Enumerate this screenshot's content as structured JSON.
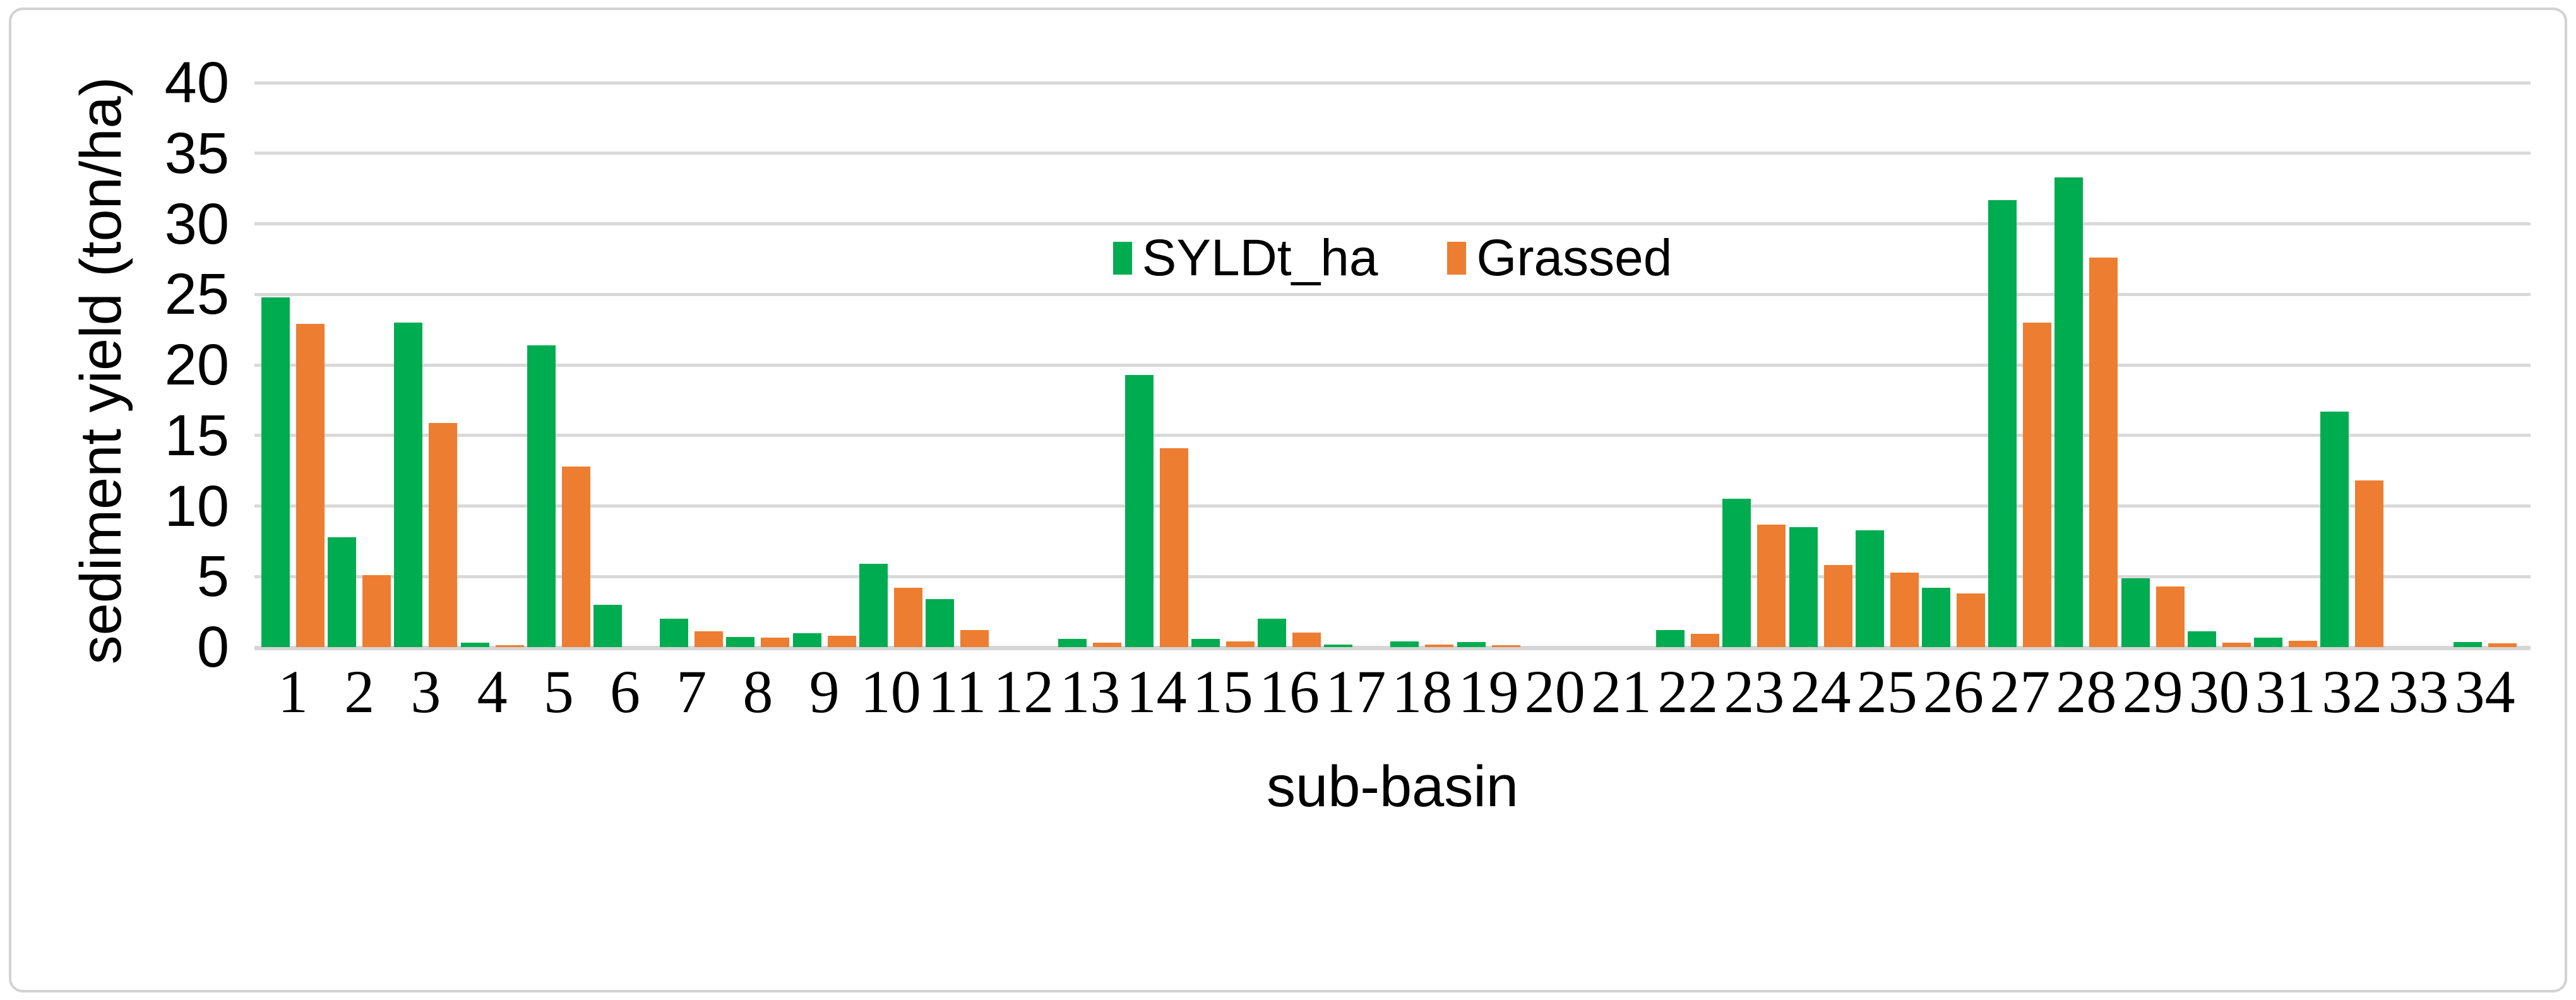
{
  "chart_data": {
    "type": "bar",
    "title": "",
    "xlabel": "sub-basin",
    "ylabel": "sediment yield (ton/ha)",
    "ylim": [
      0,
      40
    ],
    "ytick_step": 5,
    "grid": true,
    "legend_position": "top-center-inside-plot",
    "categories": [
      1,
      2,
      3,
      4,
      5,
      6,
      7,
      8,
      9,
      10,
      11,
      12,
      13,
      14,
      15,
      16,
      17,
      18,
      19,
      20,
      21,
      22,
      23,
      24,
      25,
      26,
      27,
      28,
      29,
      30,
      31,
      32,
      33,
      34
    ],
    "series": [
      {
        "name": "SYLDt_ha",
        "color": "#00AC50",
        "values": [
          24.8,
          7.8,
          23.0,
          0.3,
          21.4,
          3.0,
          2.0,
          0.7,
          1.0,
          5.9,
          3.4,
          0,
          0.6,
          19.3,
          0.6,
          2.0,
          0.2,
          0.4,
          0.35,
          0,
          0,
          1.2,
          10.5,
          8.5,
          8.3,
          4.2,
          31.7,
          33.3,
          4.9,
          1.1,
          0.65,
          16.7,
          0,
          0.36
        ]
      },
      {
        "name": "Grassed",
        "color": "#ED7D31",
        "values": [
          22.9,
          5.1,
          15.9,
          0.15,
          12.8,
          0,
          1.1,
          0.65,
          0.8,
          4.2,
          1.2,
          0,
          0.3,
          14.1,
          0.4,
          1.05,
          0,
          0.2,
          0.15,
          0,
          0,
          0.95,
          8.7,
          5.8,
          5.3,
          3.8,
          23.0,
          27.6,
          4.3,
          0.3,
          0.45,
          11.8,
          0,
          0.25
        ]
      }
    ]
  },
  "axes": {
    "x_title": "sub-basin",
    "y_title": "sediment yield (ton/ha)",
    "y_tick_labels": [
      "0",
      "5",
      "10",
      "15",
      "20",
      "25",
      "30",
      "35",
      "40"
    ]
  },
  "legend": {
    "items": [
      {
        "label": "SYLDt_ha",
        "color": "#00AC50"
      },
      {
        "label": "Grassed",
        "color": "#ED7D31"
      }
    ]
  },
  "colors": {
    "gridline": "#d9d9d9",
    "frame_border": "#d2d2d2",
    "text": "#000000",
    "background": "#ffffff"
  }
}
